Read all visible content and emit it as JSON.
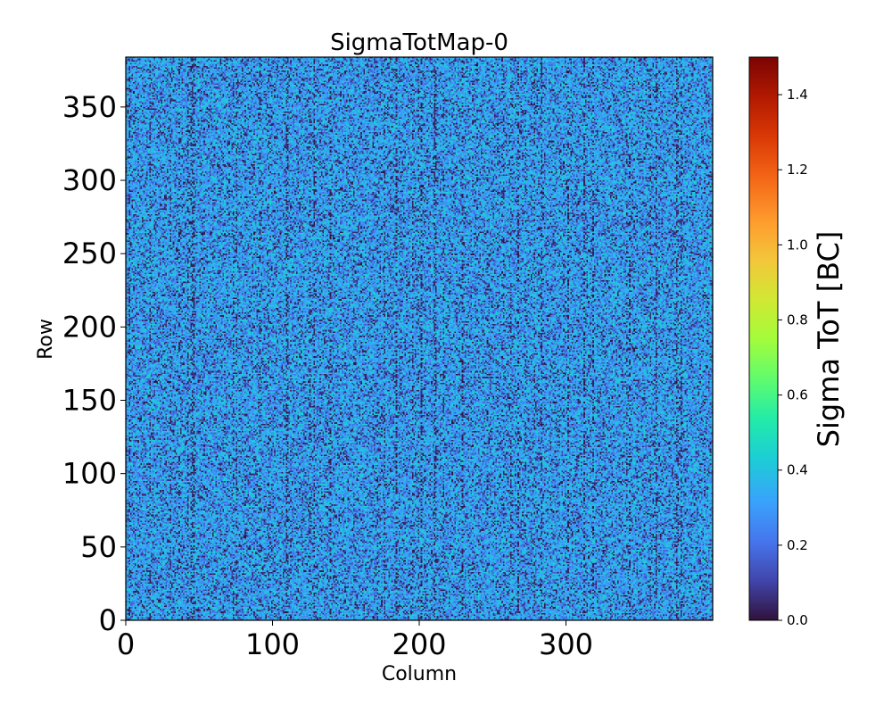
{
  "chart_data": {
    "type": "heatmap",
    "title": "SigmaTotMap-0",
    "xlabel": "Column",
    "ylabel": "Row",
    "xlim": [
      0,
      400
    ],
    "ylim": [
      0,
      384
    ],
    "xticks": [
      0,
      100,
      200,
      300
    ],
    "yticks": [
      0,
      50,
      100,
      150,
      200,
      250,
      300,
      350
    ],
    "colorbar": {
      "label": "Sigma ToT [BC]",
      "range": [
        0.0,
        1.5
      ],
      "ticks": [
        "0.0",
        "0.2",
        "0.4",
        "0.6",
        "0.8",
        "1.0",
        "1.2",
        "1.4"
      ],
      "colormap": "turbo"
    },
    "value_summary": {
      "typical_min": 0.0,
      "typical_max": 0.45,
      "typical_mean": 0.3
    }
  }
}
